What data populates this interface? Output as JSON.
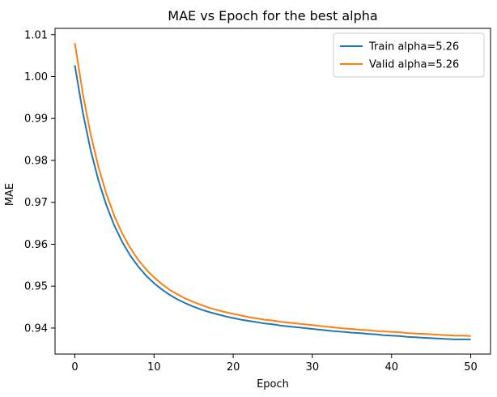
{
  "chart_data": {
    "type": "line",
    "title": "MAE vs Epoch for the best alpha",
    "xlabel": "Epoch",
    "ylabel": "MAE",
    "xlim": [
      -2.5,
      52.5
    ],
    "ylim": [
      0.9338,
      1.0115
    ],
    "xticks": [
      0,
      10,
      20,
      30,
      40,
      50
    ],
    "xtick_labels": [
      "0",
      "10",
      "20",
      "30",
      "40",
      "50"
    ],
    "yticks": [
      0.94,
      0.95,
      0.96,
      0.97,
      0.98,
      0.99,
      1.0,
      1.01
    ],
    "ytick_labels": [
      "0.94",
      "0.95",
      "0.96",
      "0.97",
      "0.98",
      "0.99",
      "1.00",
      "1.01"
    ],
    "grid": false,
    "legend_position": "top-right",
    "x": [
      0,
      1,
      2,
      3,
      4,
      5,
      6,
      7,
      8,
      9,
      10,
      11,
      12,
      13,
      14,
      15,
      16,
      17,
      18,
      19,
      20,
      21,
      22,
      23,
      24,
      25,
      26,
      27,
      28,
      29,
      30,
      31,
      32,
      33,
      34,
      35,
      36,
      37,
      38,
      39,
      40,
      41,
      42,
      43,
      44,
      45,
      46,
      47,
      48,
      49,
      50
    ],
    "series": [
      {
        "name": "Train alpha=5.26",
        "color": "#1f77b4",
        "values": [
          1.0027,
          0.9915,
          0.9824,
          0.9751,
          0.9692,
          0.9644,
          0.9605,
          0.9573,
          0.9547,
          0.9525,
          0.9507,
          0.9492,
          0.9479,
          0.9468,
          0.9459,
          0.9451,
          0.9444,
          0.9438,
          0.9433,
          0.9428,
          0.9424,
          0.942,
          0.9417,
          0.9414,
          0.9411,
          0.9409,
          0.9406,
          0.9404,
          0.9402,
          0.94,
          0.9398,
          0.9396,
          0.9394,
          0.9392,
          0.9391,
          0.9389,
          0.9388,
          0.9386,
          0.9385,
          0.9383,
          0.9382,
          0.9381,
          0.9379,
          0.9378,
          0.9377,
          0.9376,
          0.9375,
          0.9374,
          0.9373,
          0.9373,
          0.9373
        ]
      },
      {
        "name": "Valid alpha=5.26",
        "color": "#ff7f0e",
        "values": [
          1.008,
          0.996,
          0.9862,
          0.9783,
          0.9719,
          0.9667,
          0.9625,
          0.9591,
          0.9563,
          0.954,
          0.9521,
          0.9505,
          0.9491,
          0.948,
          0.947,
          0.9462,
          0.9455,
          0.9448,
          0.9443,
          0.9438,
          0.9434,
          0.943,
          0.9426,
          0.9423,
          0.942,
          0.9418,
          0.9415,
          0.9413,
          0.9411,
          0.9409,
          0.9407,
          0.9405,
          0.9403,
          0.9401,
          0.9399,
          0.9398,
          0.9396,
          0.9395,
          0.9393,
          0.9392,
          0.9391,
          0.939,
          0.9388,
          0.9387,
          0.9386,
          0.9385,
          0.9384,
          0.9383,
          0.9382,
          0.9382,
          0.9381
        ]
      }
    ]
  }
}
